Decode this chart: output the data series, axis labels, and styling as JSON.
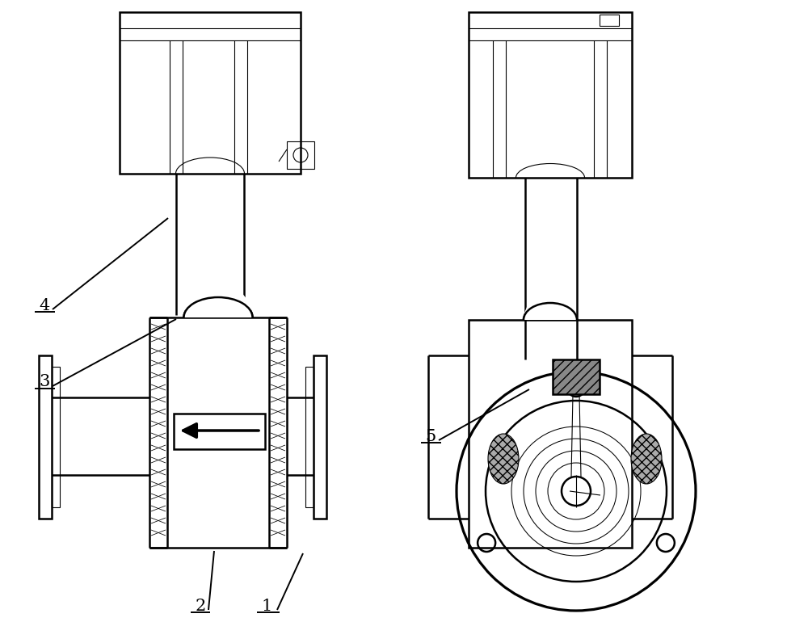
{
  "bg_color": "#ffffff",
  "line_color": "#000000",
  "label_color": "#000000",
  "lw_main": 1.8,
  "lw_thin": 0.8,
  "lw_label": 1.4,
  "label_fontsize": 15,
  "figsize": [
    10.0,
    7.96
  ],
  "dpi": 100
}
